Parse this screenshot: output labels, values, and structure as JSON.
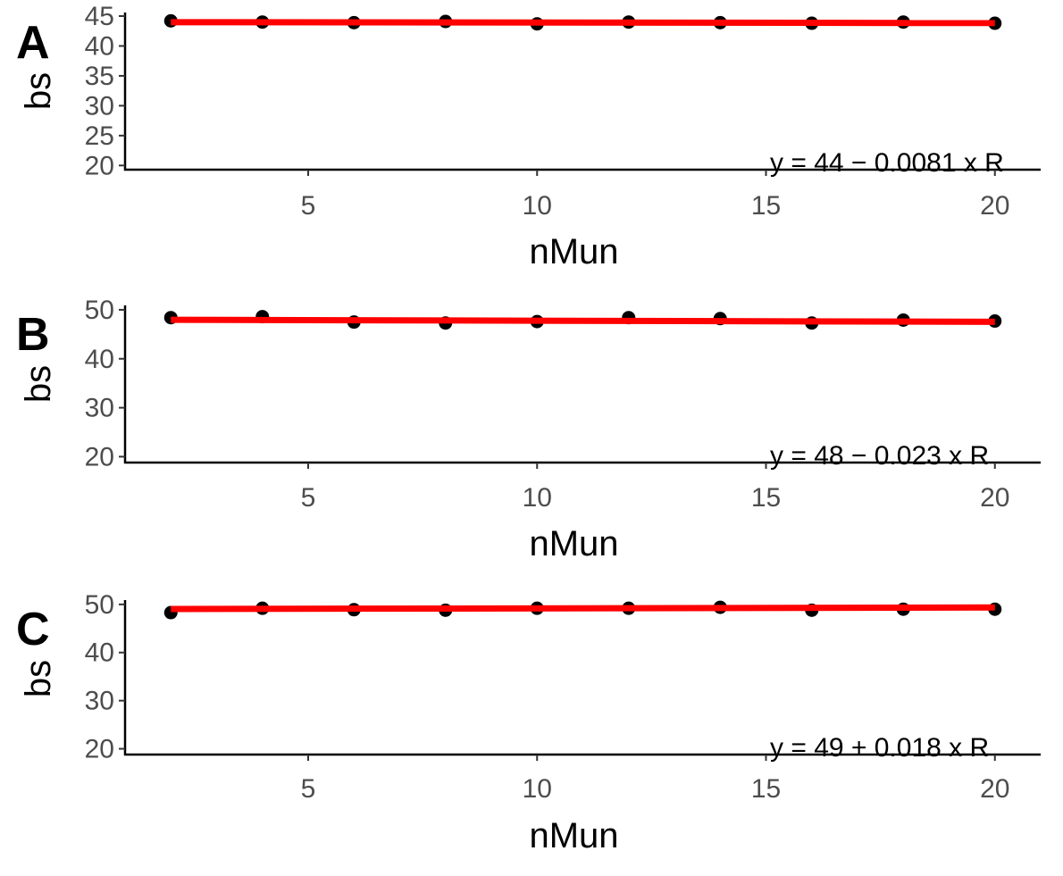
{
  "chart_data": [
    {
      "type": "scatter",
      "panel_label": "A",
      "xlabel": "nMun",
      "ylabel": "bs",
      "xlim": [
        1,
        21
      ],
      "ylim": [
        19.3,
        45.6
      ],
      "x_ticks": [
        5,
        10,
        15,
        20
      ],
      "y_ticks": [
        20,
        25,
        30,
        35,
        40,
        45
      ],
      "grid": false,
      "x": [
        2,
        4,
        6,
        8,
        10,
        12,
        14,
        16,
        18,
        20
      ],
      "y": [
        44.2,
        44.0,
        43.9,
        44.1,
        43.7,
        44.0,
        43.9,
        43.8,
        44.0,
        43.8
      ],
      "fit": {
        "intercept": 44,
        "slope": -0.0081,
        "color": "#ff0000"
      },
      "equation_text": "y = 44 − 0.0081 x   R",
      "point_color": "#000000"
    },
    {
      "type": "scatter",
      "panel_label": "B",
      "xlabel": "nMun",
      "ylabel": "bs",
      "xlim": [
        1,
        21
      ],
      "ylim": [
        18.8,
        50.9
      ],
      "x_ticks": [
        5,
        10,
        15,
        20
      ],
      "y_ticks": [
        20,
        30,
        40,
        50
      ],
      "grid": false,
      "x": [
        2,
        4,
        6,
        8,
        10,
        12,
        14,
        16,
        18,
        20
      ],
      "y": [
        48.4,
        48.6,
        47.5,
        47.3,
        47.6,
        48.4,
        48.2,
        47.3,
        47.9,
        47.7
      ],
      "fit": {
        "intercept": 48,
        "slope": -0.023,
        "color": "#ff0000"
      },
      "equation_text": "y = 48 − 0.023 x   R",
      "point_color": "#000000"
    },
    {
      "type": "scatter",
      "panel_label": "C",
      "xlabel": "nMun",
      "ylabel": "bs",
      "xlim": [
        1,
        21
      ],
      "ylim": [
        18.8,
        50.9
      ],
      "x_ticks": [
        5,
        10,
        15,
        20
      ],
      "y_ticks": [
        20,
        30,
        40,
        50
      ],
      "grid": false,
      "x": [
        2,
        4,
        6,
        8,
        10,
        12,
        14,
        16,
        18,
        20
      ],
      "y": [
        48.3,
        49.2,
        48.9,
        48.8,
        49.2,
        49.2,
        49.4,
        48.8,
        49.0,
        49.0
      ],
      "fit": {
        "intercept": 49,
        "slope": 0.018,
        "color": "#ff0000"
      },
      "equation_text": "y = 49 + 0.018 x   R",
      "point_color": "#000000"
    }
  ]
}
